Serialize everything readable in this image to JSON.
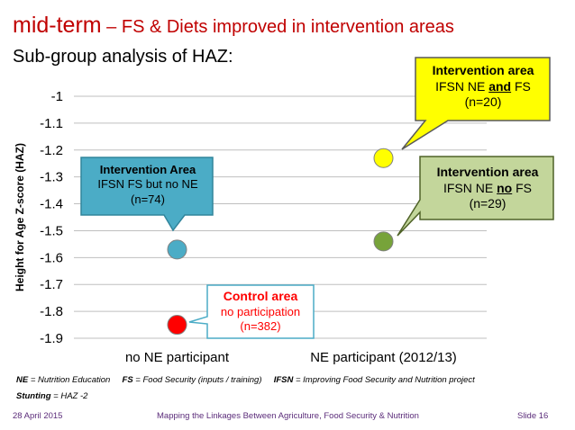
{
  "slide": {
    "title_main": "mid-term",
    "title_rest": " – FS & Diets improved in intervention areas",
    "subtitle": "Sub-group analysis of HAZ:"
  },
  "chart_data": {
    "type": "scatter",
    "ylabel": "Height for Age Z-score (HAZ)",
    "categories": [
      "no NE participant",
      "NE participant (2012/13)"
    ],
    "ylim": [
      -1.9,
      -1.0
    ],
    "yticks": [
      "-1",
      "-1.1",
      "-1.2",
      "-1.3",
      "-1.4",
      "-1.5",
      "-1.6",
      "-1.7",
      "-1.8",
      "-1.9"
    ],
    "grid": true,
    "points": [
      {
        "category": "no NE participant",
        "y": -1.57,
        "color": "#4bacc6"
      },
      {
        "category": "no NE participant",
        "y": -1.85,
        "color": "#ff0000"
      },
      {
        "category": "NE participant (2012/13)",
        "y": -1.23,
        "color": "#ffff00"
      },
      {
        "category": "NE participant (2012/13)",
        "y": -1.54,
        "color": "#77a33a"
      }
    ]
  },
  "callouts": {
    "ifsn_fs_no_ne": {
      "title": "Intervention Area",
      "line1": "IFSN FS but no NE",
      "line2": "(n=74)"
    },
    "control": {
      "title": "Control area",
      "line1": "no participation",
      "line2": "(n=382)"
    },
    "ifsn_ne_and_fs": {
      "title": "Intervention area",
      "line1_pre": "IFSN NE ",
      "line1_em": "and",
      "line1_post": " FS",
      "line2": "(n=20)"
    },
    "ifsn_ne_no_fs": {
      "title": "Intervention area",
      "line1_pre": "IFSN NE ",
      "line1_em": "no",
      "line1_post": " FS",
      "line2": "(n=29)"
    }
  },
  "notes": {
    "ne_key": "NE",
    "ne_val": " = Nutrition Education",
    "fs_key": "FS",
    "fs_val": " = Food Security (inputs / training)",
    "ifsn_key": "IFSN",
    "ifsn_val": " = Improving Food Security and Nutrition project",
    "stunting_key": "Stunting",
    "stunting_val": " = HAZ -2"
  },
  "footer": {
    "date": "28 April 2015",
    "center": "Mapping the Linkages Between Agriculture, Food Security & Nutrition",
    "slide": "Slide 16"
  },
  "colors": {
    "title": "#c00000",
    "footer": "#5b2c7a",
    "blue_callout": "#4bacc6",
    "yellow_callout": "#ffff00",
    "green_callout": "#c3d69b"
  }
}
